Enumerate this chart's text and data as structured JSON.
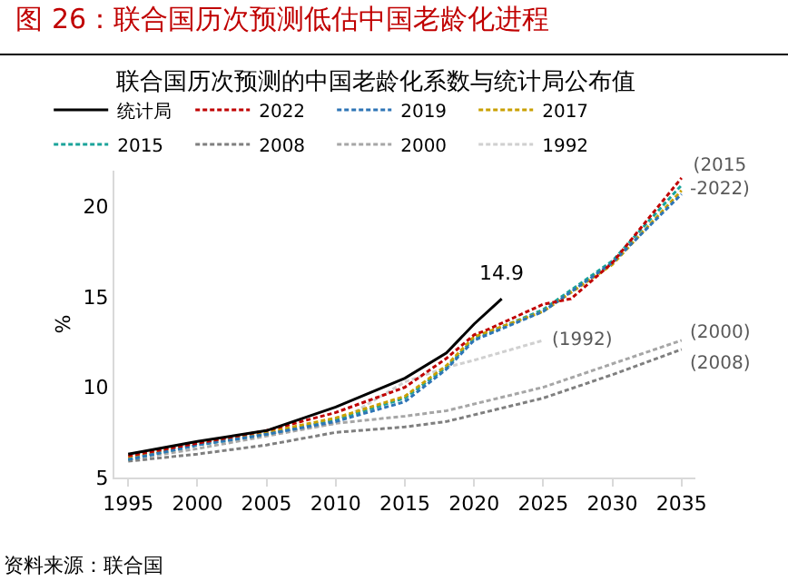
{
  "chart_data": {
    "type": "line",
    "title": "图 26：联合国历次预测低估中国老龄化进程",
    "subtitle": "联合国历次预测的中国老龄化系数与统计局公布值",
    "ylabel": "%",
    "xlim": [
      1994,
      2036
    ],
    "xticks": [
      1995,
      2000,
      2005,
      2010,
      2015,
      2020,
      2025,
      2030,
      2035
    ],
    "ylim": [
      5,
      22
    ],
    "yticks": [
      5,
      10,
      15,
      20
    ],
    "legend": "top",
    "marker": "none",
    "series": [
      {
        "name": "统计局",
        "color": "#000000",
        "line_style": "solid",
        "x": [
          1995,
          2000,
          2005,
          2010,
          2015,
          2018,
          2020,
          2022
        ],
        "values": [
          6.3,
          7.0,
          7.6,
          8.9,
          10.5,
          11.9,
          13.5,
          14.9
        ]
      },
      {
        "name": "2022",
        "color": "#c00000",
        "line_style": "dashed",
        "x": [
          1995,
          2000,
          2005,
          2010,
          2015,
          2018,
          2020,
          2021,
          2025,
          2027,
          2030,
          2035
        ],
        "values": [
          6.2,
          6.9,
          7.6,
          8.6,
          10.0,
          11.6,
          12.9,
          13.2,
          14.6,
          14.9,
          16.9,
          21.6
        ]
      },
      {
        "name": "2019",
        "color": "#2e75b6",
        "line_style": "dashed",
        "x": [
          1995,
          2000,
          2005,
          2010,
          2015,
          2018,
          2020,
          2025,
          2030,
          2035
        ],
        "values": [
          6.0,
          6.8,
          7.4,
          8.1,
          9.2,
          11.0,
          12.6,
          14.2,
          16.9,
          20.7
        ]
      },
      {
        "name": "2017",
        "color": "#c9a000",
        "line_style": "dashed",
        "x": [
          1995,
          2000,
          2005,
          2010,
          2015,
          2018,
          2020,
          2025,
          2030,
          2035
        ],
        "values": [
          6.1,
          6.9,
          7.5,
          8.3,
          9.5,
          11.2,
          12.8,
          14.2,
          16.8,
          20.9
        ]
      },
      {
        "name": "2015",
        "color": "#1aa39a",
        "line_style": "dashed",
        "x": [
          1995,
          2000,
          2005,
          2010,
          2015,
          2018,
          2020,
          2025,
          2030,
          2035
        ],
        "values": [
          6.0,
          6.8,
          7.4,
          8.2,
          9.4,
          11.1,
          12.7,
          14.3,
          17.0,
          21.2
        ]
      },
      {
        "name": "2008",
        "color": "#7f7f7f",
        "line_style": "dashed",
        "x": [
          1995,
          2000,
          2005,
          2010,
          2015,
          2018,
          2025,
          2030,
          2035
        ],
        "values": [
          5.9,
          6.3,
          6.8,
          7.5,
          7.8,
          8.1,
          9.4,
          10.7,
          12.1
        ]
      },
      {
        "name": "2000",
        "color": "#a6a6a6",
        "line_style": "dashed",
        "x": [
          1995,
          2000,
          2005,
          2010,
          2015,
          2018,
          2025,
          2030,
          2035
        ],
        "values": [
          6.0,
          6.6,
          7.3,
          8.0,
          8.4,
          8.7,
          10.0,
          11.3,
          12.6
        ]
      },
      {
        "name": "1992",
        "color": "#d0d0d0",
        "line_style": "dashed",
        "x": [
          1995,
          2000,
          2005,
          2010,
          2015,
          2018,
          2020,
          2025
        ],
        "values": [
          6.3,
          6.9,
          7.4,
          8.0,
          10.3,
          11.1,
          11.5,
          12.6
        ]
      }
    ],
    "annotations": [
      {
        "text": "14.9",
        "x": 2022,
        "y": 14.9
      },
      {
        "text": "(2015\n-2022)",
        "x": 2035,
        "y": 21.6
      },
      {
        "text": "(1992)",
        "x": 2025,
        "y": 12.6
      },
      {
        "text": "(2000)",
        "x": 2035,
        "y": 12.6
      },
      {
        "text": "(2008)",
        "x": 2035,
        "y": 12.1
      },
      "资料来源：联合国"
    ]
  }
}
